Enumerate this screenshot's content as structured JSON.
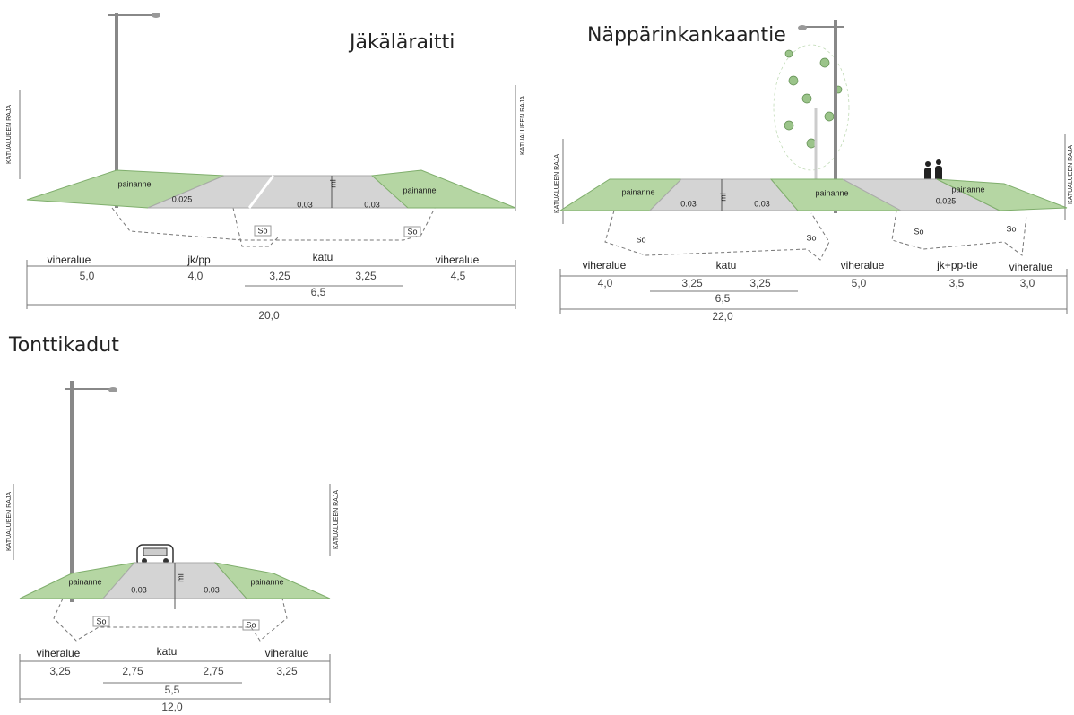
{
  "sections": [
    {
      "title": "Jäkäläraitti",
      "boundary_labels": [
        "KATUALUEEN RAJA",
        "KATUALUEEN RAJA"
      ],
      "surface_labels": [
        "painanne",
        "0.025",
        "0.03",
        "ml",
        "0.03",
        "painanne"
      ],
      "ditch_labels": [
        "So",
        "So"
      ],
      "zones": [
        "viheralue",
        "jk/pp",
        "katu",
        "viheralue"
      ],
      "widths": [
        "5,0",
        "4,0",
        "3,25",
        "3,25",
        "4,5"
      ],
      "subtotal": "6,5",
      "total": "20,0"
    },
    {
      "title": "Näppärinkankaantie",
      "boundary_labels": [
        "KATUALUEEN RAJA",
        "KATUALUEEN RAJA"
      ],
      "surface_labels": [
        "painanne",
        "0.03",
        "ml",
        "0.03",
        "painanne",
        "painanne",
        "0.025"
      ],
      "ditch_labels": [
        "So",
        "So",
        "So",
        "So"
      ],
      "zones": [
        "viheralue",
        "katu",
        "viheralue",
        "jk+pp-tie",
        "viheralue"
      ],
      "widths": [
        "4,0",
        "3,25",
        "3,25",
        "5,0",
        "3,5",
        "3,0"
      ],
      "subtotal": "6,5",
      "total": "22,0"
    },
    {
      "title": "Tonttikadut",
      "boundary_labels": [
        "KATUALUEEN RAJA",
        "KATUALUEEN RAJA"
      ],
      "surface_labels": [
        "painanne",
        "0.03",
        "ml",
        "0.03",
        "painanne"
      ],
      "ditch_labels": [
        "So",
        "So"
      ],
      "zones": [
        "viheralue",
        "katu",
        "viheralue"
      ],
      "widths": [
        "3,25",
        "2,75",
        "2,75",
        "3,25"
      ],
      "subtotal": "5,5",
      "total": "12,0"
    }
  ]
}
